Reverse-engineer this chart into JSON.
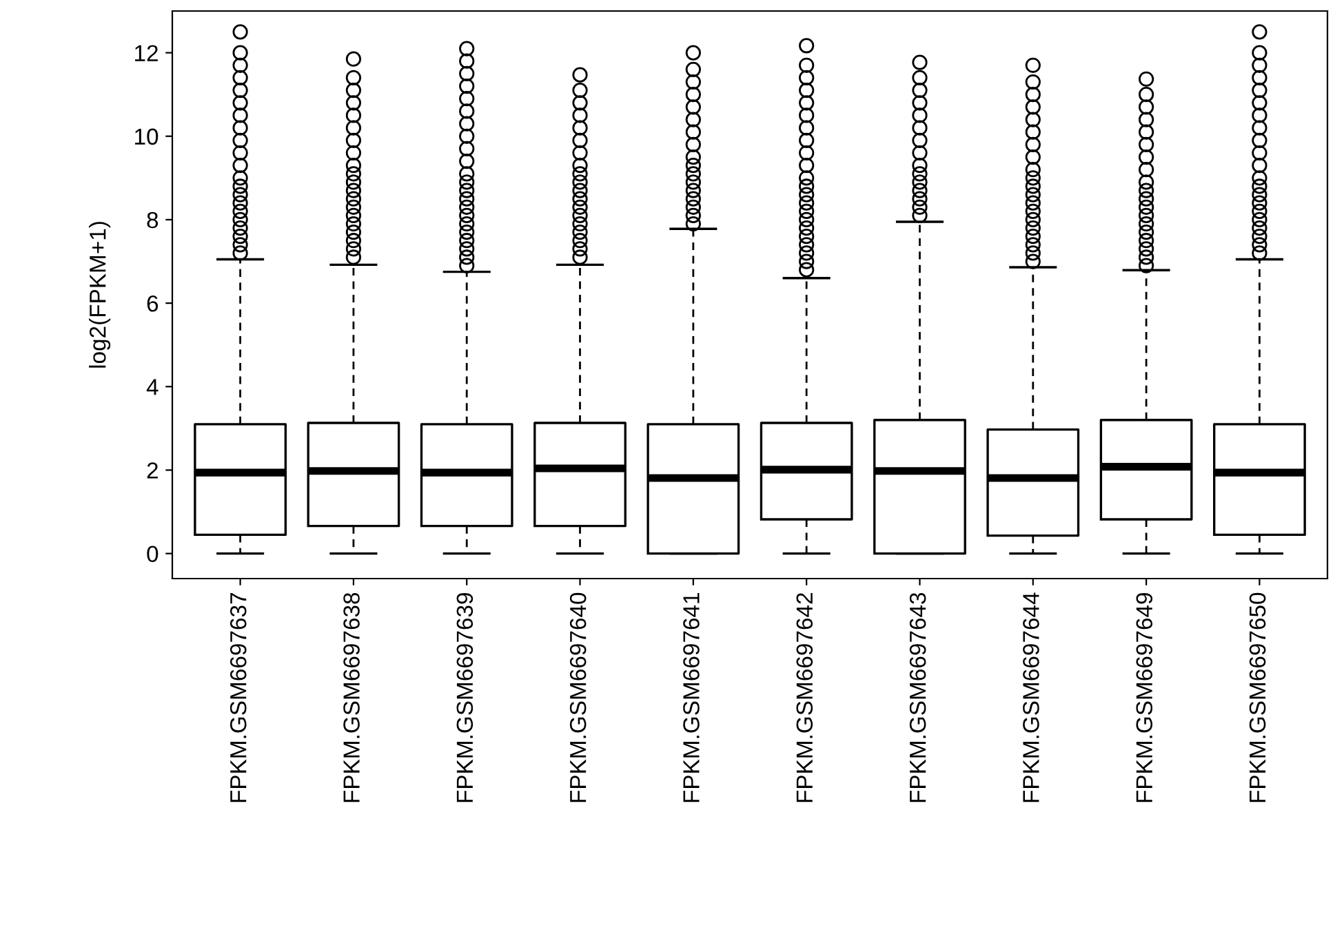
{
  "chart_data": {
    "type": "box",
    "ylabel": "log2(FPKM+1)",
    "categories": [
      "FPKM.GSM6697637",
      "FPKM.GSM6697638",
      "FPKM.GSM6697639",
      "FPKM.GSM6697640",
      "FPKM.GSM6697641",
      "FPKM.GSM6697642",
      "FPKM.GSM6697643",
      "FPKM.GSM6697644",
      "FPKM.GSM6697649",
      "FPKM.GSM6697650"
    ],
    "boxes": [
      {
        "low": 0,
        "q1": 0.45,
        "median": 1.94,
        "q3": 3.1,
        "high": 7.05,
        "outliers": [
          7.2,
          7.4,
          7.6,
          7.8,
          8.0,
          8.2,
          8.4,
          8.6,
          8.8,
          9.0,
          9.3,
          9.6,
          9.9,
          10.2,
          10.5,
          10.8,
          11.1,
          11.4,
          11.7,
          12.0,
          12.5
        ]
      },
      {
        "low": 0,
        "q1": 0.66,
        "median": 1.98,
        "q3": 3.13,
        "high": 6.92,
        "outliers": [
          7.1,
          7.3,
          7.5,
          7.7,
          7.9,
          8.1,
          8.3,
          8.5,
          8.7,
          8.9,
          9.1,
          9.3,
          9.6,
          9.9,
          10.2,
          10.5,
          10.8,
          11.1,
          11.4,
          11.85
        ]
      },
      {
        "low": 0,
        "q1": 0.66,
        "median": 1.94,
        "q3": 3.1,
        "high": 6.75,
        "outliers": [
          6.9,
          7.1,
          7.3,
          7.5,
          7.7,
          7.9,
          8.1,
          8.3,
          8.5,
          8.7,
          8.9,
          9.1,
          9.4,
          9.7,
          10.0,
          10.3,
          10.6,
          10.9,
          11.2,
          11.5,
          11.8,
          12.1
        ]
      },
      {
        "low": 0,
        "q1": 0.66,
        "median": 2.04,
        "q3": 3.13,
        "high": 6.92,
        "outliers": [
          7.1,
          7.3,
          7.5,
          7.7,
          7.9,
          8.1,
          8.3,
          8.5,
          8.7,
          8.9,
          9.1,
          9.3,
          9.6,
          9.9,
          10.2,
          10.5,
          10.8,
          11.1,
          11.47
        ]
      },
      {
        "low": 0,
        "q1": 0,
        "median": 1.81,
        "q3": 3.1,
        "high": 7.78,
        "outliers": [
          7.9,
          8.1,
          8.3,
          8.5,
          8.7,
          8.9,
          9.1,
          9.3,
          9.5,
          9.8,
          10.1,
          10.4,
          10.7,
          11.0,
          11.3,
          11.6,
          12.0
        ]
      },
      {
        "low": 0,
        "q1": 0.82,
        "median": 2.01,
        "q3": 3.13,
        "high": 6.6,
        "outliers": [
          6.8,
          7.0,
          7.2,
          7.4,
          7.6,
          7.8,
          8.0,
          8.2,
          8.4,
          8.6,
          8.8,
          9.0,
          9.3,
          9.6,
          9.9,
          10.2,
          10.5,
          10.8,
          11.1,
          11.4,
          11.7,
          12.17
        ]
      },
      {
        "low": 0,
        "q1": 0,
        "median": 1.98,
        "q3": 3.2,
        "high": 7.95,
        "outliers": [
          8.1,
          8.3,
          8.5,
          8.7,
          8.9,
          9.1,
          9.3,
          9.6,
          9.9,
          10.2,
          10.5,
          10.8,
          11.1,
          11.4,
          11.77
        ]
      },
      {
        "low": 0,
        "q1": 0.43,
        "median": 1.81,
        "q3": 2.97,
        "high": 6.86,
        "outliers": [
          7.0,
          7.2,
          7.4,
          7.6,
          7.8,
          8.0,
          8.2,
          8.4,
          8.6,
          8.8,
          9.0,
          9.2,
          9.5,
          9.8,
          10.1,
          10.4,
          10.7,
          11.0,
          11.3,
          11.7
        ]
      },
      {
        "low": 0,
        "q1": 0.82,
        "median": 2.08,
        "q3": 3.2,
        "high": 6.79,
        "outliers": [
          6.9,
          7.1,
          7.3,
          7.5,
          7.7,
          7.9,
          8.1,
          8.3,
          8.5,
          8.7,
          8.9,
          9.2,
          9.5,
          9.8,
          10.1,
          10.4,
          10.7,
          11.0,
          11.37
        ]
      },
      {
        "low": 0,
        "q1": 0.45,
        "median": 1.94,
        "q3": 3.1,
        "high": 7.05,
        "outliers": [
          7.2,
          7.4,
          7.6,
          7.8,
          8.0,
          8.2,
          8.4,
          8.6,
          8.8,
          9.0,
          9.3,
          9.6,
          9.9,
          10.2,
          10.5,
          10.8,
          11.1,
          11.4,
          11.7,
          12.0,
          12.5
        ]
      }
    ],
    "ylim": [
      -0.6,
      13.0
    ],
    "yticks": [
      0,
      2,
      4,
      6,
      8,
      10,
      12
    ],
    "grid": false
  }
}
